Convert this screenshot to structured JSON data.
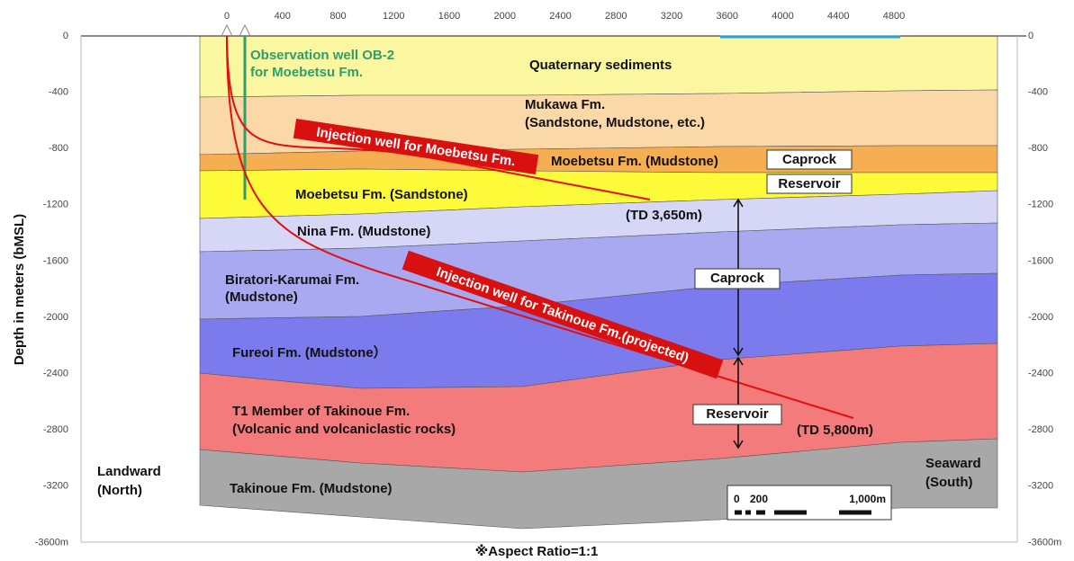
{
  "top_axis": {
    "ticks": [
      "0",
      "400",
      "800",
      "1200",
      "1600",
      "2000",
      "2400",
      "2800",
      "3200",
      "3600",
      "4000",
      "4400",
      "4800"
    ]
  },
  "depth_axis": {
    "title": "Depth in meters (bMSL)",
    "ticks": [
      "0",
      "-400",
      "-800",
      "-1200",
      "-1600",
      "-2000",
      "-2400",
      "-2800",
      "-3200",
      "-3600m"
    ]
  },
  "layers": [
    {
      "lines": [
        "Quaternary sediments"
      ]
    },
    {
      "lines": [
        "Mukawa Fm.",
        "(Sandstone, Mudstone, etc.)"
      ]
    },
    {
      "lines": [
        "Moebetsu Fm. (Mudstone)"
      ]
    },
    {
      "lines": [
        "Moebetsu  Fm. (Sandstone)"
      ]
    },
    {
      "lines": [
        "Nina Fm. (Mudstone)"
      ]
    },
    {
      "lines": [
        "Biratori-Karumai Fm.",
        "(Mudstone)"
      ]
    },
    {
      "lines": [
        "Fureoi Fm. (Mudstone）"
      ]
    },
    {
      "lines": [
        "T1 Member of Takinoue Fm.",
        "(Volcanic and volcaniclastic rocks)"
      ]
    },
    {
      "lines": [
        "Takinoue Fm. (Mudstone)"
      ]
    }
  ],
  "wells": {
    "observation": [
      "Observation well OB-2",
      "for Moebetsu Fm."
    ],
    "injection_moebetsu": "Injection well for Moebetsu Fm.",
    "injection_takinoue": "Injection well for Takinoue Fm.(projected)",
    "td_moebetsu": "(TD 3,650m)",
    "td_takinoue": "(TD 5,800m)"
  },
  "zones": [
    "Caprock",
    "Reservoir",
    "Caprock",
    "Reservoir"
  ],
  "sides": {
    "left": [
      "Landward",
      "(North)"
    ],
    "right": [
      "Seaward",
      "(South)"
    ]
  },
  "scale": [
    "0",
    "200",
    "1,000m"
  ],
  "footer": "※Aspect Ratio=1:1"
}
